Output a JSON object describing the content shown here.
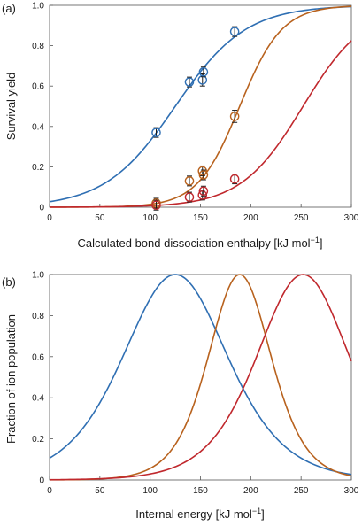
{
  "chart_data": [
    {
      "panel_label": "(a)",
      "type": "scatter",
      "xlabel": "Calculated bond dissociation enthalpy [kJ mol",
      "xlabel_sup": "−1",
      "xlabel_end": "]",
      "ylabel": "Survival yield",
      "xlim": [
        0,
        300
      ],
      "ylim": [
        0,
        1.0
      ],
      "xticks": [
        0,
        50,
        100,
        150,
        200,
        250,
        300
      ],
      "yticks": [
        0,
        0.2,
        0.4,
        0.6,
        0.8,
        1.0
      ],
      "ytick_labels": [
        "0",
        "0.2",
        "0.4",
        "0.6",
        "0.8",
        "1.0"
      ],
      "grid": false,
      "series": [
        {
          "color": "#2f6fb3",
          "curve": {
            "kind": "sigmoid",
            "center": 125,
            "width": 35
          },
          "points": [
            {
              "x": 106,
              "y": 0.37,
              "err": 0.02
            },
            {
              "x": 139,
              "y": 0.62,
              "err": 0.02
            },
            {
              "x": 152,
              "y": 0.63,
              "err": 0.03
            },
            {
              "x": 153,
              "y": 0.67,
              "err": 0.02
            },
            {
              "x": 184,
              "y": 0.87,
              "err": 0.02
            }
          ]
        },
        {
          "color": "#b8621e",
          "curve": {
            "kind": "sigmoid",
            "center": 189,
            "width": 21
          },
          "points": [
            {
              "x": 106,
              "y": 0.02,
              "err": 0.01
            },
            {
              "x": 139,
              "y": 0.13,
              "err": 0.01
            },
            {
              "x": 152,
              "y": 0.18,
              "err": 0.02
            },
            {
              "x": 153,
              "y": 0.16,
              "err": 0.02
            },
            {
              "x": 184,
              "y": 0.45,
              "err": 0.03
            }
          ]
        },
        {
          "color": "#c0282d",
          "curve": {
            "kind": "sigmoid",
            "center": 252,
            "width": 31
          },
          "points": [
            {
              "x": 106,
              "y": 0.01,
              "err": 0.01
            },
            {
              "x": 139,
              "y": 0.05,
              "err": 0.01
            },
            {
              "x": 152,
              "y": 0.06,
              "err": 0.01
            },
            {
              "x": 153,
              "y": 0.08,
              "err": 0.01
            },
            {
              "x": 184,
              "y": 0.14,
              "err": 0.01
            }
          ]
        }
      ]
    },
    {
      "panel_label": "(b)",
      "type": "line",
      "xlabel": "Internal energy [kJ mol",
      "xlabel_sup": "−1",
      "xlabel_end": "]",
      "ylabel": "Fraction of ion population",
      "xlim": [
        0,
        300
      ],
      "ylim": [
        0,
        1.0
      ],
      "xticks": [
        0,
        50,
        100,
        150,
        200,
        250,
        300
      ],
      "yticks": [
        0,
        0.2,
        0.4,
        0.6,
        0.8,
        1.0
      ],
      "ytick_labels": [
        "0",
        "0.2",
        "0.4",
        "0.6",
        "0.8",
        "1.0"
      ],
      "grid": false,
      "series": [
        {
          "color": "#2f6fb3",
          "curve": {
            "kind": "peak",
            "center": 125,
            "width": 35
          }
        },
        {
          "color": "#b8621e",
          "curve": {
            "kind": "peak",
            "center": 189,
            "width": 21
          }
        },
        {
          "color": "#c0282d",
          "curve": {
            "kind": "peak",
            "center": 252,
            "width": 31
          }
        }
      ]
    }
  ]
}
